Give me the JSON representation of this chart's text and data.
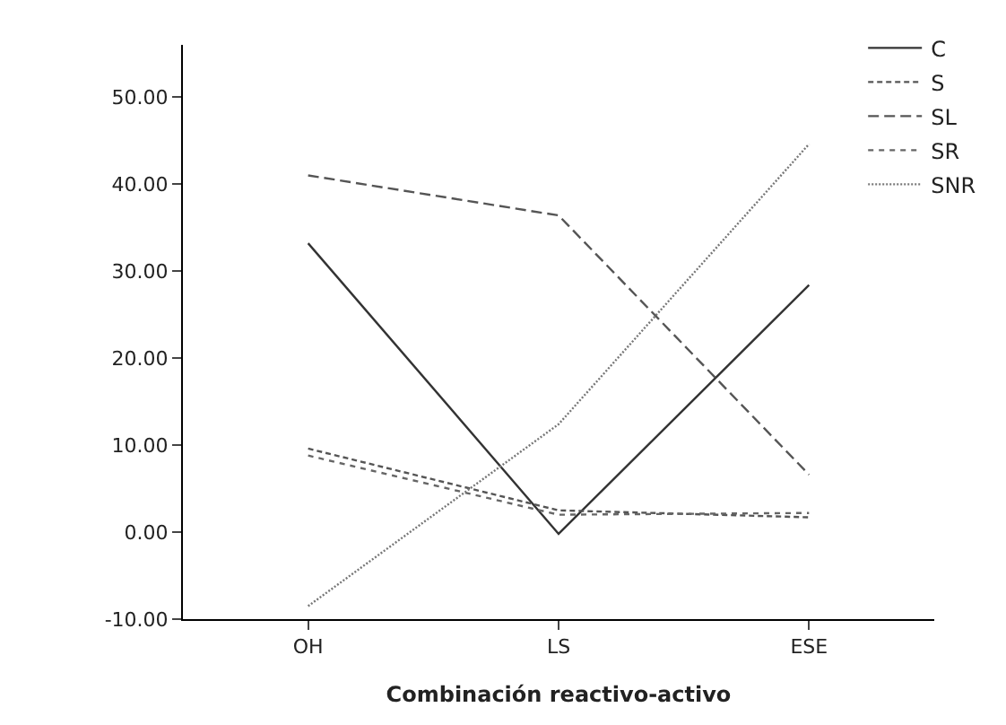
{
  "chart_data": {
    "type": "line",
    "xlabel": "Combinación reactivo-activo",
    "categories": [
      "OH",
      "LS",
      "ESE"
    ],
    "series": [
      {
        "name": "C",
        "color": "#333333",
        "line_style": "solid",
        "values": [
          33.2,
          -0.2,
          28.4
        ]
      },
      {
        "name": "S",
        "color": "#555555",
        "line_style": "dashed",
        "values": [
          9.6,
          2.5,
          1.7
        ]
      },
      {
        "name": "SL",
        "color": "#555555",
        "line_style": "dashed",
        "values": [
          41.0,
          36.4,
          6.6
        ]
      },
      {
        "name": "SR",
        "color": "#666666",
        "line_style": "dotted",
        "values": [
          8.8,
          2.0,
          2.2
        ]
      },
      {
        "name": "SNR",
        "color": "#777777",
        "line_style": "dotted",
        "values": [
          -8.5,
          12.4,
          44.6
        ]
      }
    ],
    "ylim": [
      -10,
      56
    ],
    "yticks": [
      {
        "value": -10,
        "label": "-10.00"
      },
      {
        "value": 0,
        "label": "0.00"
      },
      {
        "value": 10,
        "label": "10.00"
      },
      {
        "value": 20,
        "label": "20.00"
      },
      {
        "value": 30,
        "label": "30.00"
      },
      {
        "value": 40,
        "label": "40.00"
      },
      {
        "value": 50,
        "label": "50.00"
      }
    ],
    "grid": false,
    "legend": "top right",
    "marker": "none"
  }
}
